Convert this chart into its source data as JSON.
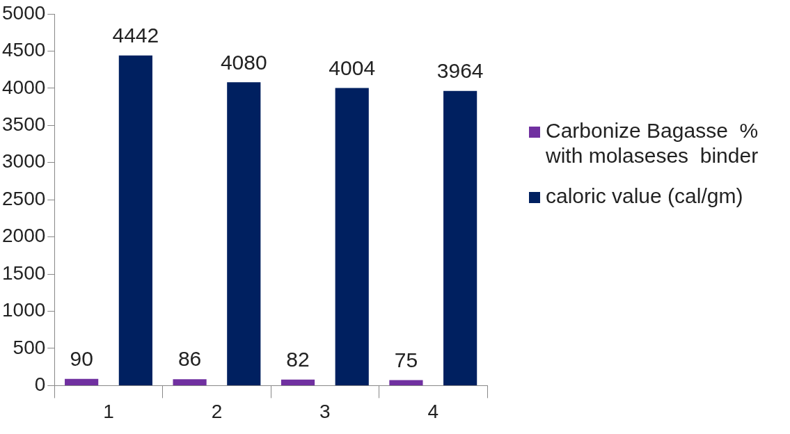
{
  "chart_data": {
    "type": "bar",
    "categories": [
      "1",
      "2",
      "3",
      "4"
    ],
    "series": [
      {
        "name": "Carbonize Bagasse  % with molaseses  binder",
        "color": "#7030a0",
        "values": [
          90,
          86,
          82,
          75
        ]
      },
      {
        "name": "caloric value (cal/gm)",
        "color": "#002060",
        "values": [
          4442,
          4080,
          4004,
          3964
        ]
      }
    ],
    "ylim": [
      0,
      5000
    ],
    "yticks": [
      0,
      500,
      1000,
      1500,
      2000,
      2500,
      3000,
      3500,
      4000,
      4500,
      5000
    ],
    "grid": false,
    "legend": "right",
    "data_labels": true
  }
}
